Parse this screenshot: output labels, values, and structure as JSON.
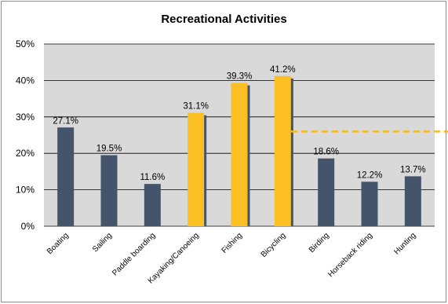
{
  "chart_data": {
    "type": "bar",
    "title": "Recreational Activities",
    "xlabel": "",
    "ylabel": "",
    "ylim": [
      0,
      50
    ],
    "y_ticks": [
      "0%",
      "10%",
      "20%",
      "30%",
      "40%",
      "50%"
    ],
    "grid": true,
    "categories": [
      "Boating",
      "Sailing",
      "Paddle boarding",
      "Kayaking/Canoeing",
      "Fishing",
      "Bicycling",
      "Birding",
      "Horseback riding",
      "Hunting"
    ],
    "values": [
      27.1,
      19.5,
      11.6,
      31.1,
      39.3,
      41.2,
      18.6,
      12.2,
      13.7
    ],
    "data_labels": [
      "27.1%",
      "19.5%",
      "11.6%",
      "31.1%",
      "39.3%",
      "41.2%",
      "18.6%",
      "12.2%",
      "13.7%"
    ],
    "highlighted": [
      "Kayaking/Canoeing",
      "Fishing",
      "Bicycling"
    ],
    "reference_line": {
      "value": 26,
      "style": "dashed"
    },
    "colors": {
      "bar": "#44546a",
      "highlight": "#fbbf24",
      "plot_background": "#d9d9d9",
      "grid": "#000000",
      "reference_line": "#f9b81c"
    }
  }
}
